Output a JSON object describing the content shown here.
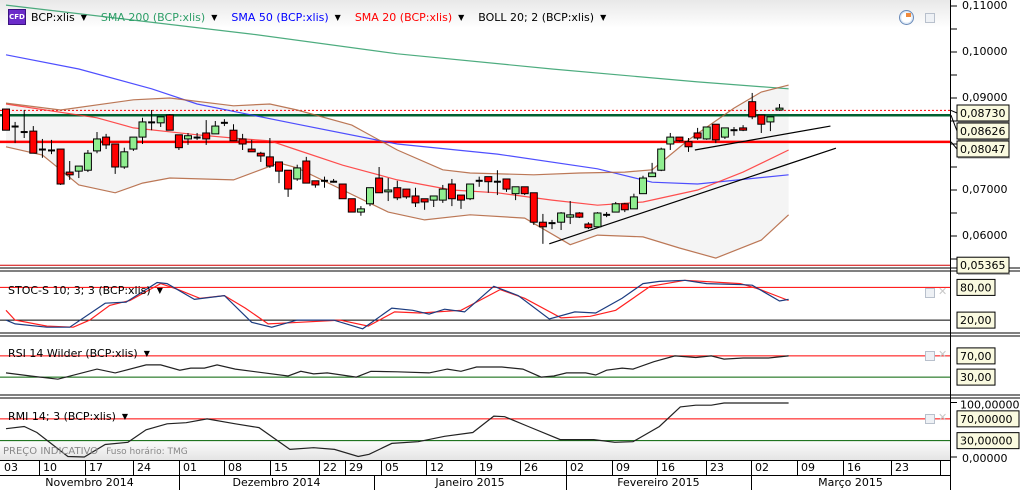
{
  "legend": {
    "symbol_badge": "CFD",
    "instrument": "BCP:xlis",
    "sma200": "SMA 200 (BCP:xlis)",
    "sma50": "SMA 50 (BCP:xlis)",
    "sma20": "SMA 20 (BCP:xlis)",
    "boll": "BOLL 20; 2 (BCP:xlis)"
  },
  "colors": {
    "up": "#90ee90",
    "down": "#ff0000",
    "sma200": "#2e9e68",
    "sma50": "#3030ff",
    "sma20": "#ff3030",
    "boll": "#b0603a",
    "band": "#f4f4f4",
    "label_bg": "#fafae0",
    "green_line": "#006030",
    "red_line": "#ff0000"
  },
  "price_axis": {
    "ticks": [
      "0,11000",
      "0,10000",
      "0,09000",
      "0,07000",
      "0,06000"
    ],
    "tick_values": [
      0.11,
      0.1,
      0.09,
      0.07,
      0.06
    ],
    "range": [
      0.0525,
      0.1113
    ]
  },
  "price_levels": [
    {
      "value": 0.0873,
      "label": "0,08730",
      "style": "dotted-red"
    },
    {
      "value": 0.08626,
      "label": "0,08626",
      "style": "thick-green"
    },
    {
      "value": 0.08047,
      "label": "0,08047",
      "style": "thick-red"
    },
    {
      "value": 0.05365,
      "label": "0,05365",
      "style": "thin-red"
    }
  ],
  "candles": [
    [
      0.0876,
      0.0876,
      0.083,
      0.083
    ],
    [
      0.0838,
      0.0848,
      0.0802,
      0.0838
    ],
    [
      0.0826,
      0.0874,
      0.0813,
      0.0824
    ],
    [
      0.0828,
      0.0839,
      0.078,
      0.078
    ],
    [
      0.0788,
      0.0811,
      0.077,
      0.0788
    ],
    [
      0.0786,
      0.0809,
      0.0778,
      0.0786
    ],
    [
      0.0789,
      0.0789,
      0.0711,
      0.0713
    ],
    [
      0.0739,
      0.0763,
      0.0722,
      0.0733
    ],
    [
      0.0741,
      0.0752,
      0.0726,
      0.0752
    ],
    [
      0.0743,
      0.0787,
      0.0739,
      0.078
    ],
    [
      0.0785,
      0.0826,
      0.078,
      0.0811
    ],
    [
      0.0815,
      0.0822,
      0.0789,
      0.0798
    ],
    [
      0.08,
      0.08,
      0.0735,
      0.075
    ],
    [
      0.075,
      0.0792,
      0.0746,
      0.0783
    ],
    [
      0.0789,
      0.0815,
      0.0785,
      0.0815
    ],
    [
      0.0815,
      0.0857,
      0.08,
      0.0848
    ],
    [
      0.0847,
      0.0874,
      0.083,
      0.0847
    ],
    [
      0.0846,
      0.0859,
      0.0837,
      0.0859
    ],
    [
      0.0863,
      0.0865,
      0.083,
      0.083
    ],
    [
      0.082,
      0.082,
      0.0787,
      0.0792
    ],
    [
      0.0811,
      0.0824,
      0.0798,
      0.0818
    ],
    [
      0.0814,
      0.0824,
      0.0809,
      0.0814
    ],
    [
      0.0824,
      0.0852,
      0.0798,
      0.0811
    ],
    [
      0.0822,
      0.085,
      0.0822,
      0.0839
    ],
    [
      0.0846,
      0.0854,
      0.0839,
      0.0846
    ],
    [
      0.083,
      0.0843,
      0.0807,
      0.0807
    ],
    [
      0.0811,
      0.0822,
      0.0787,
      0.08
    ],
    [
      0.0789,
      0.0809,
      0.0783,
      0.0783
    ],
    [
      0.078,
      0.0783,
      0.0761,
      0.0774
    ],
    [
      0.0772,
      0.0813,
      0.0748,
      0.0752
    ],
    [
      0.0761,
      0.0761,
      0.0715,
      0.0741
    ],
    [
      0.0743,
      0.0743,
      0.0685,
      0.0702
    ],
    [
      0.0724,
      0.0755,
      0.072,
      0.0748
    ],
    [
      0.0763,
      0.0772,
      0.0715,
      0.0715
    ],
    [
      0.072,
      0.072,
      0.0705,
      0.0711
    ],
    [
      0.072,
      0.0729,
      0.0705,
      0.072
    ],
    [
      0.0718,
      0.0724,
      0.0716,
      0.0718
    ],
    [
      0.0713,
      0.0713,
      0.0681,
      0.0681
    ],
    [
      0.0681,
      0.0681,
      0.0652,
      0.0652
    ],
    [
      0.0652,
      0.0665,
      0.0644,
      0.0659
    ],
    [
      0.067,
      0.0705,
      0.0665,
      0.0705
    ],
    [
      0.0726,
      0.075,
      0.0694,
      0.0694
    ],
    [
      0.0696,
      0.0726,
      0.0676,
      0.07
    ],
    [
      0.0705,
      0.072,
      0.0678,
      0.0683
    ],
    [
      0.0702,
      0.0702,
      0.0681,
      0.0685
    ],
    [
      0.0687,
      0.0705,
      0.0663,
      0.0672
    ],
    [
      0.0681,
      0.0681,
      0.0657,
      0.0674
    ],
    [
      0.0678,
      0.0687,
      0.0663,
      0.0687
    ],
    [
      0.0678,
      0.0711,
      0.0672,
      0.0702
    ],
    [
      0.0713,
      0.0724,
      0.0665,
      0.0681
    ],
    [
      0.0689,
      0.0689,
      0.0659,
      0.0678
    ],
    [
      0.0681,
      0.0713,
      0.0678,
      0.0713
    ],
    [
      0.072,
      0.0729,
      0.0707,
      0.072
    ],
    [
      0.0729,
      0.0729,
      0.0694,
      0.0718
    ],
    [
      0.0718,
      0.0743,
      0.0689,
      0.0718
    ],
    [
      0.0724,
      0.0724,
      0.0696,
      0.0702
    ],
    [
      0.0692,
      0.0707,
      0.0678,
      0.0707
    ],
    [
      0.0707,
      0.0707,
      0.0689,
      0.0692
    ],
    [
      0.0694,
      0.0694,
      0.0624,
      0.063
    ],
    [
      0.063,
      0.0648,
      0.0583,
      0.062
    ],
    [
      0.0628,
      0.0635,
      0.0615,
      0.0628
    ],
    [
      0.063,
      0.0652,
      0.0613,
      0.065
    ],
    [
      0.0641,
      0.0676,
      0.0626,
      0.0646
    ],
    [
      0.065,
      0.0652,
      0.0639,
      0.0641
    ],
    [
      0.0626,
      0.063,
      0.0615,
      0.0618
    ],
    [
      0.062,
      0.0652,
      0.062,
      0.065
    ],
    [
      0.0646,
      0.0652,
      0.0641,
      0.0646
    ],
    [
      0.0652,
      0.0674,
      0.0652,
      0.067
    ],
    [
      0.067,
      0.0672,
      0.0652,
      0.0657
    ],
    [
      0.0659,
      0.0692,
      0.0659,
      0.0685
    ],
    [
      0.0692,
      0.0731,
      0.0692,
      0.0726
    ],
    [
      0.0729,
      0.0759,
      0.0729,
      0.0737
    ],
    [
      0.0743,
      0.0792,
      0.0741,
      0.0789
    ],
    [
      0.08,
      0.0824,
      0.0787,
      0.0815
    ],
    [
      0.0815,
      0.0815,
      0.0805,
      0.0807
    ],
    [
      0.0805,
      0.0813,
      0.0783,
      0.0794
    ],
    [
      0.0824,
      0.0835,
      0.0809,
      0.0813
    ],
    [
      0.0811,
      0.0837,
      0.0809,
      0.0837
    ],
    [
      0.0843,
      0.0843,
      0.0802,
      0.0809
    ],
    [
      0.0815,
      0.0835,
      0.0811,
      0.0835
    ],
    [
      0.0828,
      0.0837,
      0.0818,
      0.083
    ],
    [
      0.0835,
      0.0841,
      0.0828,
      0.083
    ],
    [
      0.0892,
      0.0911,
      0.0854,
      0.0859
    ],
    [
      0.0863,
      0.0863,
      0.0824,
      0.0843
    ],
    [
      0.0848,
      0.0859,
      0.0828,
      0.0859
    ],
    [
      0.0874,
      0.0887,
      0.0872,
      0.0878
    ]
  ],
  "overlays": {
    "sma200": [
      [
        0,
        0.1102
      ],
      [
        27,
        0.1039
      ],
      [
        43,
        0.0996
      ],
      [
        60,
        0.0963
      ],
      [
        76,
        0.0935
      ],
      [
        86,
        0.092
      ]
    ],
    "sma50": [
      [
        0,
        0.0994
      ],
      [
        8,
        0.0963
      ],
      [
        16,
        0.092
      ],
      [
        21,
        0.0887
      ],
      [
        32,
        0.0843
      ],
      [
        43,
        0.08
      ],
      [
        54,
        0.0778
      ],
      [
        65,
        0.0746
      ],
      [
        71,
        0.0717
      ],
      [
        76,
        0.0713
      ],
      [
        86,
        0.0733
      ]
    ],
    "sma20": [
      [
        0,
        0.0887
      ],
      [
        10,
        0.0857
      ],
      [
        14,
        0.0835
      ],
      [
        21,
        0.082
      ],
      [
        26,
        0.0811
      ],
      [
        29,
        0.0807
      ],
      [
        32,
        0.0787
      ],
      [
        37,
        0.0754
      ],
      [
        43,
        0.0722
      ],
      [
        49,
        0.07
      ],
      [
        54,
        0.0694
      ],
      [
        60,
        0.0678
      ],
      [
        65,
        0.0667
      ],
      [
        70,
        0.0674
      ],
      [
        76,
        0.07
      ],
      [
        81,
        0.0739
      ],
      [
        86,
        0.0787
      ]
    ],
    "boll_upper": [
      [
        0,
        0.0889
      ],
      [
        6,
        0.0874
      ],
      [
        14,
        0.0896
      ],
      [
        18,
        0.09
      ],
      [
        25,
        0.0883
      ],
      [
        29,
        0.0887
      ],
      [
        32,
        0.0874
      ],
      [
        38,
        0.0841
      ],
      [
        43,
        0.0787
      ],
      [
        48,
        0.0744
      ],
      [
        51,
        0.0737
      ],
      [
        58,
        0.0733
      ],
      [
        63,
        0.0737
      ],
      [
        68,
        0.0739
      ],
      [
        71,
        0.0744
      ],
      [
        75,
        0.0809
      ],
      [
        80,
        0.0878
      ],
      [
        83,
        0.0913
      ],
      [
        86,
        0.0928
      ]
    ],
    "boll_lower": [
      [
        0,
        0.0794
      ],
      [
        4,
        0.0776
      ],
      [
        6,
        0.0744
      ],
      [
        8,
        0.0711
      ],
      [
        12,
        0.0694
      ],
      [
        15,
        0.0715
      ],
      [
        18,
        0.0726
      ],
      [
        25,
        0.0722
      ],
      [
        30,
        0.0759
      ],
      [
        32,
        0.0748
      ],
      [
        37,
        0.07
      ],
      [
        42,
        0.0652
      ],
      [
        46,
        0.0635
      ],
      [
        51,
        0.0646
      ],
      [
        57,
        0.0639
      ],
      [
        62,
        0.0581
      ],
      [
        65,
        0.0602
      ],
      [
        70,
        0.0598
      ],
      [
        74,
        0.0574
      ],
      [
        78,
        0.0552
      ],
      [
        83,
        0.0591
      ],
      [
        86,
        0.0646
      ]
    ]
  },
  "trendlines": [
    [
      [
        59.7,
        0.0583
      ],
      [
        91.2,
        0.0791
      ]
    ],
    [
      [
        75.7,
        0.0787
      ],
      [
        90.6,
        0.0839
      ]
    ]
  ],
  "stoch": {
    "label": "STOC-S 10; 3; 3 (BCP:xlis)",
    "levels": [
      "80,00",
      "20,00"
    ],
    "level_values": [
      80,
      20
    ],
    "k": [
      [
        0,
        20
      ],
      [
        1,
        13
      ],
      [
        4.5,
        7
      ],
      [
        7,
        7
      ],
      [
        10.9,
        51
      ],
      [
        13.2,
        53
      ],
      [
        16.6,
        89
      ],
      [
        17.7,
        87
      ],
      [
        20.7,
        58
      ],
      [
        24,
        65
      ],
      [
        27,
        16
      ],
      [
        29.2,
        7
      ],
      [
        32,
        20
      ],
      [
        36,
        20
      ],
      [
        39.2,
        4
      ],
      [
        42.4,
        42
      ],
      [
        44.7,
        38
      ],
      [
        46.5,
        31
      ],
      [
        48.2,
        40
      ],
      [
        50.4,
        35
      ],
      [
        53.6,
        82
      ],
      [
        56.3,
        65
      ],
      [
        59.7,
        22
      ],
      [
        62.5,
        35
      ],
      [
        64.8,
        33
      ],
      [
        67.7,
        60
      ],
      [
        70,
        87
      ],
      [
        71.8,
        91
      ],
      [
        74.6,
        93
      ],
      [
        77,
        87
      ],
      [
        81,
        85
      ],
      [
        82,
        84
      ],
      [
        85,
        55
      ],
      [
        86,
        58
      ]
    ],
    "d": [
      [
        0,
        38
      ],
      [
        1,
        20
      ],
      [
        4.5,
        9
      ],
      [
        7.4,
        7
      ],
      [
        9.2,
        20
      ],
      [
        11.4,
        47
      ],
      [
        13.6,
        56
      ],
      [
        17,
        87
      ],
      [
        18.6,
        78
      ],
      [
        21.3,
        60
      ],
      [
        24,
        65
      ],
      [
        26.3,
        42
      ],
      [
        28.8,
        13
      ],
      [
        31.2,
        15
      ],
      [
        36.7,
        20
      ],
      [
        39.8,
        9
      ],
      [
        42.7,
        35
      ],
      [
        45.5,
        33
      ],
      [
        50,
        38
      ],
      [
        54.3,
        76
      ],
      [
        57,
        60
      ],
      [
        61,
        24
      ],
      [
        64.2,
        27
      ],
      [
        67,
        38
      ],
      [
        70.8,
        82
      ],
      [
        74.6,
        93
      ],
      [
        80.7,
        87
      ],
      [
        82.9,
        76
      ],
      [
        86,
        56
      ]
    ]
  },
  "rsi": {
    "label": "RSI 14 Wilder (BCP:xlis)",
    "levels": [
      "70,00",
      "30,00"
    ],
    "level_values": [
      70,
      30
    ],
    "values": [
      [
        0,
        38
      ],
      [
        2.7,
        32
      ],
      [
        5.7,
        26
      ],
      [
        10,
        45
      ],
      [
        12,
        38
      ],
      [
        15.4,
        53
      ],
      [
        17,
        53
      ],
      [
        19.1,
        43
      ],
      [
        20.3,
        47
      ],
      [
        21.8,
        47
      ],
      [
        23.2,
        53
      ],
      [
        25.2,
        45
      ],
      [
        31,
        32
      ],
      [
        32.4,
        41
      ],
      [
        33.8,
        36
      ],
      [
        35.3,
        38
      ],
      [
        38.5,
        30
      ],
      [
        40.1,
        41
      ],
      [
        43,
        40
      ],
      [
        46.5,
        38
      ],
      [
        48.5,
        45
      ],
      [
        50,
        41
      ],
      [
        51.7,
        49
      ],
      [
        54.5,
        49
      ],
      [
        56.8,
        45
      ],
      [
        58.8,
        30
      ],
      [
        60.2,
        32
      ],
      [
        61.6,
        38
      ],
      [
        63.7,
        38
      ],
      [
        64.8,
        34
      ],
      [
        66,
        43
      ],
      [
        67.7,
        47
      ],
      [
        68.9,
        45
      ],
      [
        71.2,
        59
      ],
      [
        73.5,
        70
      ],
      [
        75.8,
        67
      ],
      [
        77.5,
        70
      ],
      [
        78.9,
        64
      ],
      [
        81,
        66
      ],
      [
        83.8,
        66
      ],
      [
        86,
        70
      ]
    ]
  },
  "rmi": {
    "label": "RMI 14; 3 (BCP:xlis)",
    "levels": [
      "70,00000",
      "30,00000"
    ],
    "level_values": [
      70,
      30
    ],
    "axis": [
      "100,00000",
      "0,00000"
    ],
    "values": [
      [
        0,
        52
      ],
      [
        2,
        56
      ],
      [
        3.4,
        45
      ],
      [
        6.8,
        1
      ],
      [
        8.6,
        0
      ],
      [
        10.9,
        23
      ],
      [
        13.4,
        27
      ],
      [
        15.4,
        50
      ],
      [
        17.7,
        61
      ],
      [
        19.8,
        63
      ],
      [
        22.1,
        70
      ],
      [
        25.2,
        61
      ],
      [
        27.8,
        54
      ],
      [
        31.2,
        14
      ],
      [
        33.8,
        17
      ],
      [
        36.1,
        14
      ],
      [
        38.7,
        1
      ],
      [
        39.9,
        5
      ],
      [
        42.4,
        25
      ],
      [
        45.3,
        28
      ],
      [
        48.2,
        38
      ],
      [
        51.3,
        45
      ],
      [
        53.6,
        75
      ],
      [
        54.8,
        74
      ],
      [
        57.4,
        56
      ],
      [
        60.9,
        32
      ],
      [
        64.6,
        32
      ],
      [
        66.9,
        27
      ],
      [
        68.9,
        28
      ],
      [
        71.8,
        56
      ],
      [
        74.1,
        92
      ],
      [
        75.8,
        95
      ],
      [
        77.5,
        95
      ],
      [
        78.9,
        99
      ],
      [
        86,
        99
      ]
    ]
  },
  "footer": {
    "price_note": "PREÇO INDICATIVO",
    "timezone": "Fuso horário: TMG"
  },
  "dates": {
    "days": [
      "03",
      "10",
      "17",
      "24",
      "01",
      "08",
      "15",
      "22",
      "29",
      "05",
      "12",
      "19",
      "26",
      "02",
      "09",
      "16",
      "23",
      "02",
      "09",
      "16",
      "23"
    ],
    "months": [
      "Novembro 2014",
      "Dezembro 2014",
      "Janeiro 2015",
      "Fevereiro 2015",
      "Março 2015"
    ]
  }
}
